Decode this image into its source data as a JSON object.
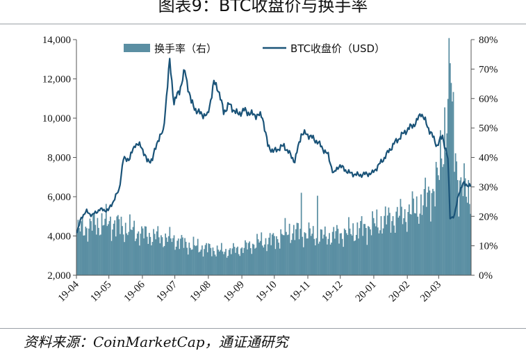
{
  "figure": {
    "title": "图表9：BTC收盘价与换手率",
    "source": "资料来源：CoinMarketCap，通证通研究"
  },
  "chart_data": {
    "type": "bar+line",
    "x_ticks": [
      "19-04",
      "19-05",
      "19-06",
      "19-07",
      "19-08",
      "19-09",
      "19-10",
      "19-11",
      "19-12",
      "20-01",
      "20-02",
      "20-03"
    ],
    "x_range": [
      "2019-04-01",
      "2020-03-31"
    ],
    "y_left": {
      "ticks": [
        "2,000",
        "4,000",
        "6,000",
        "8,000",
        "10,000",
        "12,000",
        "14,000"
      ],
      "range": [
        2000,
        14000
      ]
    },
    "y_right": {
      "ticks": [
        "0%",
        "10%",
        "20%",
        "30%",
        "40%",
        "50%",
        "60%",
        "70%",
        "80%"
      ],
      "range": [
        0,
        80
      ]
    },
    "legend": {
      "position": "top",
      "entries": [
        "换手率（右）",
        "BTC收盘价（USD）"
      ]
    },
    "colors": {
      "turnover": "#5b8fa3",
      "price": "#1a5378"
    },
    "series": [
      {
        "name": "BTC收盘价（USD）",
        "axis": "left",
        "style": "line",
        "x": [
          "2019-04-01",
          "2019-04-05",
          "2019-04-10",
          "2019-04-15",
          "2019-04-22",
          "2019-04-30",
          "2019-05-05",
          "2019-05-10",
          "2019-05-14",
          "2019-05-20",
          "2019-05-25",
          "2019-05-31",
          "2019-06-05",
          "2019-06-10",
          "2019-06-15",
          "2019-06-20",
          "2019-06-26",
          "2019-06-30",
          "2019-07-05",
          "2019-07-10",
          "2019-07-16",
          "2019-07-22",
          "2019-07-31",
          "2019-08-06",
          "2019-08-10",
          "2019-08-15",
          "2019-08-20",
          "2019-08-28",
          "2019-09-03",
          "2019-09-10",
          "2019-09-20",
          "2019-09-25",
          "2019-09-30",
          "2019-10-10",
          "2019-10-20",
          "2019-10-26",
          "2019-10-31",
          "2019-11-10",
          "2019-11-20",
          "2019-11-25",
          "2019-11-30",
          "2019-12-10",
          "2019-12-18",
          "2019-12-31",
          "2020-01-10",
          "2020-01-20",
          "2020-01-31",
          "2020-02-10",
          "2020-02-14",
          "2020-02-20",
          "2020-02-29",
          "2020-03-05",
          "2020-03-10",
          "2020-03-12",
          "2020-03-16",
          "2020-03-20",
          "2020-03-25",
          "2020-03-31"
        ],
        "values": [
          4150,
          4950,
          5250,
          5050,
          5350,
          5300,
          5800,
          6350,
          7900,
          7950,
          8700,
          8550,
          7800,
          7900,
          8900,
          9300,
          12900,
          10800,
          11400,
          12400,
          10800,
          10300,
          10100,
          11800,
          11500,
          10300,
          10700,
          10200,
          10400,
          10200,
          10100,
          8600,
          8300,
          8600,
          7800,
          9200,
          9200,
          8800,
          8100,
          7150,
          7600,
          7200,
          7100,
          7200,
          7900,
          8700,
          9350,
          9800,
          10300,
          9600,
          8600,
          9100,
          7900,
          4950,
          5000,
          6200,
          6700,
          6500
        ]
      },
      {
        "name": "换手率（右）",
        "axis": "right",
        "style": "bar",
        "x": [
          "2019-04-01",
          "2019-04-15",
          "2019-05-01",
          "2019-05-15",
          "2019-06-01",
          "2019-06-15",
          "2019-07-01",
          "2019-07-15",
          "2019-08-01",
          "2019-08-15",
          "2019-09-01",
          "2019-09-15",
          "2019-10-01",
          "2019-10-15",
          "2019-11-01",
          "2019-11-15",
          "2019-12-01",
          "2019-12-15",
          "2020-01-01",
          "2020-01-15",
          "2020-02-01",
          "2020-02-15",
          "2020-03-01",
          "2020-03-12",
          "2020-03-20",
          "2020-03-31"
        ],
        "values": [
          15,
          17,
          18,
          16,
          14,
          13,
          12,
          10,
          9,
          8,
          9,
          11,
          12,
          15,
          14,
          13,
          14,
          15,
          17,
          19,
          21,
          24,
          32,
          65,
          30,
          28
        ]
      }
    ],
    "spikes": [
      {
        "x": "2019-10-26",
        "value": 28
      },
      {
        "x": "2019-11-10",
        "value": 27
      },
      {
        "x": "2020-03-12",
        "value": 72
      },
      {
        "x": "2020-03-14",
        "value": 59
      }
    ]
  }
}
